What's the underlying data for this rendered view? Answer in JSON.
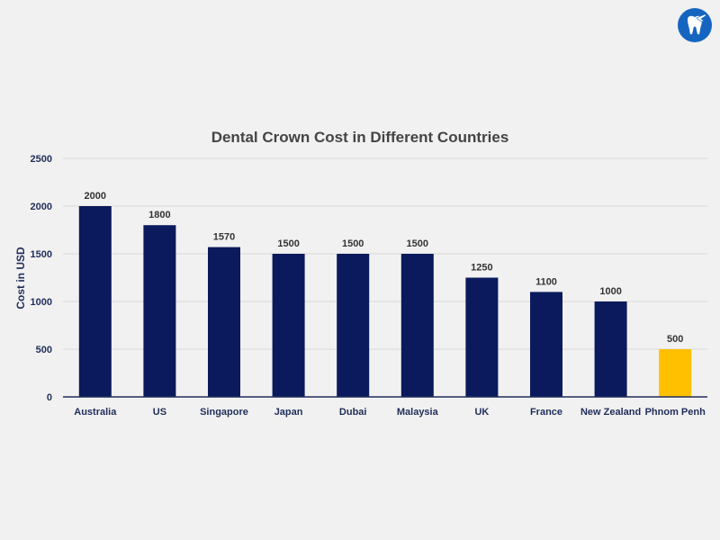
{
  "logo": {
    "icon": "tooth-airplane-icon",
    "color": "#1565c0"
  },
  "colors": {
    "bar": "#0b1a5c",
    "highlight": "#ffc000",
    "grid": "#d9d9d9",
    "axis": "#1f2d5a"
  },
  "chart_data": {
    "type": "bar",
    "title": "Dental Crown Cost in Different Countries",
    "xlabel": "",
    "ylabel": "Cost in USD",
    "ylim": [
      0,
      2500
    ],
    "yticks": [
      0,
      500,
      1000,
      1500,
      2000,
      2500
    ],
    "grid": true,
    "legend": "none",
    "categories": [
      "Australia",
      "US",
      "Singapore",
      "Japan",
      "Dubai",
      "Malaysia",
      "UK",
      "France",
      "New Zealand",
      "Phnom Penh"
    ],
    "values": [
      2000,
      1800,
      1570,
      1500,
      1500,
      1500,
      1250,
      1100,
      1000,
      500
    ],
    "data_labels": [
      "2000",
      "1800",
      "1570",
      "1500",
      "1500",
      "1500",
      "1250",
      "1100",
      "1000",
      "500"
    ],
    "highlight": "Phnom Penh"
  }
}
